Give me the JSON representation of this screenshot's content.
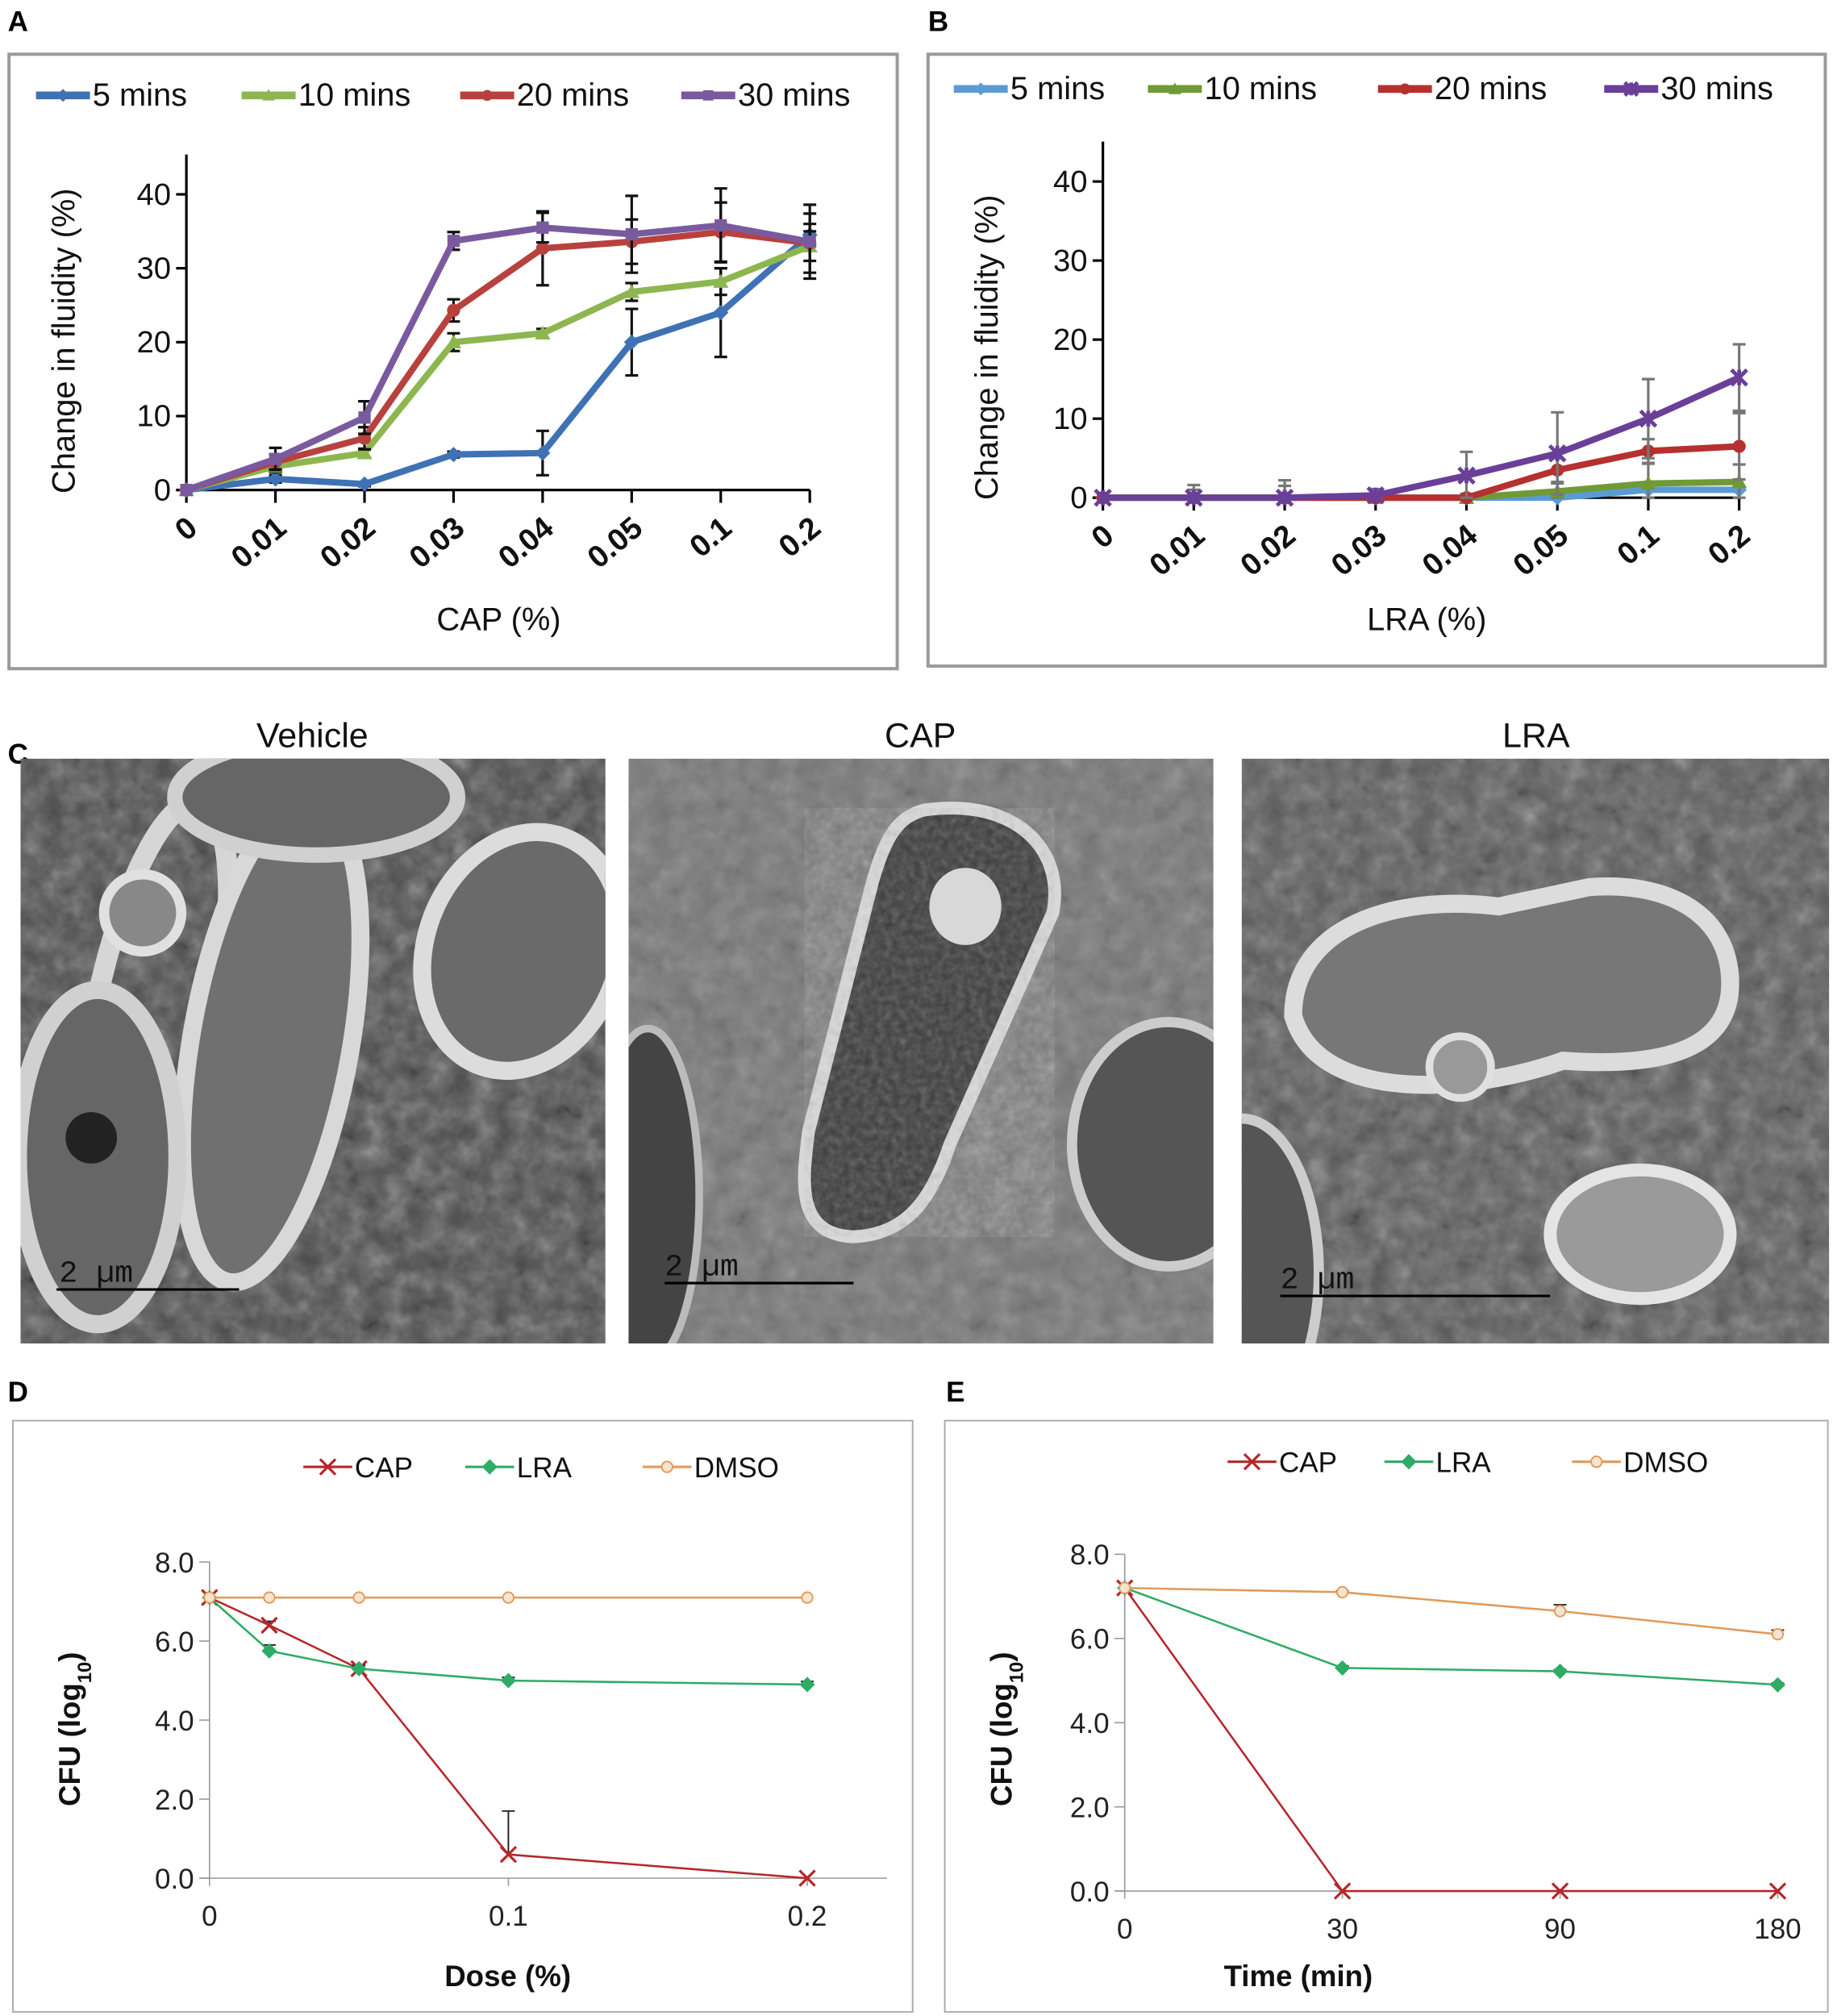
{
  "panel_labels": {
    "a": "A",
    "b": "B",
    "c": "C",
    "d": "D",
    "e": "E"
  },
  "micrographs": {
    "titles": [
      "Vehicle",
      "CAP",
      "LRA"
    ],
    "scale_bar": "2 µm"
  },
  "chart_data": [
    {
      "id": "A",
      "type": "line",
      "xlabel": "CAP (%)",
      "ylabel": "Change in fluidity (%)",
      "categories": [
        "0",
        "0.01",
        "0.02",
        "0.03",
        "0.04",
        "0.05",
        "0.1",
        "0.2"
      ],
      "yticks": [
        "0",
        "10",
        "20",
        "30",
        "40"
      ],
      "ylim": [
        0,
        45
      ],
      "legend_position": "top",
      "series": [
        {
          "name": "5 mins",
          "color": "#3f71b5",
          "marker": "diamond",
          "values": [
            0,
            1.5,
            0.8,
            4.8,
            5,
            20,
            24,
            34.5
          ],
          "errors": [
            0,
            0.5,
            0.3,
            0.4,
            3,
            4.5,
            6,
            1.5
          ]
        },
        {
          "name": "10 mins",
          "color": "#8db650",
          "marker": "triangle",
          "values": [
            0,
            3.2,
            5,
            20,
            21.2,
            26.8,
            28.2,
            33
          ],
          "errors": [
            0,
            0.8,
            0.6,
            1.2,
            0.6,
            1.2,
            1.8,
            2
          ]
        },
        {
          "name": "20 mins",
          "color": "#b8413e",
          "marker": "circle",
          "values": [
            0,
            3.8,
            7,
            24.3,
            32.7,
            33.6,
            34.9,
            33.4
          ],
          "errors": [
            0,
            1,
            1.5,
            1.5,
            5,
            3,
            4,
            4
          ]
        },
        {
          "name": "30 mins",
          "color": "#7a5a9e",
          "marker": "square",
          "values": [
            0,
            4.2,
            9.8,
            33.7,
            35.5,
            34.6,
            35.8,
            33.6
          ],
          "errors": [
            0,
            1.5,
            2.2,
            1.2,
            2,
            5.2,
            5,
            5
          ]
        }
      ]
    },
    {
      "id": "B",
      "type": "line",
      "xlabel": "LRA (%)",
      "ylabel": "Change in fluidity (%)",
      "categories": [
        "0",
        "0.01",
        "0.02",
        "0.03",
        "0.04",
        "0.05",
        "0.1",
        "0.2"
      ],
      "yticks": [
        "0",
        "10",
        "20",
        "30",
        "40"
      ],
      "ylim": [
        0,
        45
      ],
      "legend_position": "top",
      "series": [
        {
          "name": "5 mins",
          "color": "#5b9bd5",
          "marker": "diamond",
          "values": [
            0,
            0,
            0,
            0,
            0,
            0,
            1,
            1
          ],
          "errors": [
            0,
            0,
            0,
            0,
            0,
            0,
            0,
            0
          ]
        },
        {
          "name": "10 mins",
          "color": "#6f9a35",
          "marker": "triangle",
          "values": [
            0,
            0,
            0,
            0,
            0,
            0.8,
            1.8,
            2
          ],
          "errors": [
            0,
            0,
            0,
            0,
            0,
            1,
            2.5,
            2.2
          ]
        },
        {
          "name": "20 mins",
          "color": "#b5302e",
          "marker": "circle",
          "values": [
            0,
            0,
            0,
            0,
            0,
            3.5,
            5.9,
            6.5
          ],
          "errors": [
            0,
            1,
            1.5,
            0.5,
            0.5,
            1.5,
            1.5,
            4.2
          ]
        },
        {
          "name": "30 mins",
          "color": "#6a3f98",
          "marker": "star",
          "values": [
            0,
            0,
            0,
            0.3,
            2.8,
            5.6,
            10,
            15.2
          ],
          "errors": [
            0,
            1.6,
            2.2,
            0.8,
            3,
            5.2,
            5,
            4.2
          ]
        }
      ]
    },
    {
      "id": "D",
      "type": "line",
      "xlabel": "Dose (%)",
      "ylabel": "CFU (log",
      "ylabel_sub": "10",
      "ylabel_end": ")",
      "x": [
        0,
        0.02,
        0.05,
        0.1,
        0.2
      ],
      "xticks": [
        "0",
        "0.1",
        "0.2"
      ],
      "xtick_values": [
        0,
        0.1,
        0.2
      ],
      "xlim": [
        0,
        0.2
      ],
      "yticks": [
        "0.0",
        "2.0",
        "4.0",
        "6.0",
        "8.0"
      ],
      "ylim": [
        0,
        8
      ],
      "legend_position": "top",
      "series": [
        {
          "name": "CAP",
          "color": "#b5272b",
          "marker": "x",
          "values": [
            7.1,
            6.4,
            5.3,
            0.6,
            0
          ],
          "errors": [
            0,
            0.1,
            0.1,
            1.1,
            0
          ]
        },
        {
          "name": "LRA",
          "color": "#2eac66",
          "marker": "diamond",
          "values": [
            7.1,
            5.75,
            5.3,
            5.0,
            4.9
          ],
          "errors": [
            0,
            0.15,
            0.08,
            0.08,
            0.08
          ]
        },
        {
          "name": "DMSO",
          "color": "#e29a5a",
          "marker": "open-circle",
          "values": [
            7.1,
            7.1,
            7.1,
            7.1,
            7.1
          ],
          "errors": [
            0,
            0,
            0,
            0,
            0
          ]
        }
      ]
    },
    {
      "id": "E",
      "type": "line",
      "xlabel": "Time (min)",
      "ylabel": "CFU (log",
      "ylabel_sub": "10",
      "ylabel_end": ")",
      "categories": [
        "0",
        "30",
        "90",
        "180"
      ],
      "yticks": [
        "0.0",
        "2.0",
        "4.0",
        "6.0",
        "8.0"
      ],
      "ylim": [
        0,
        8
      ],
      "legend_position": "top",
      "series": [
        {
          "name": "CAP",
          "color": "#b5272b",
          "marker": "x",
          "values": [
            7.2,
            0,
            0,
            0
          ],
          "errors": [
            0,
            0,
            0,
            0
          ]
        },
        {
          "name": "LRA",
          "color": "#2eac66",
          "marker": "diamond",
          "values": [
            7.2,
            5.3,
            5.22,
            4.9
          ],
          "errors": [
            0,
            0.05,
            0.04,
            0.04
          ]
        },
        {
          "name": "DMSO",
          "color": "#e29a5a",
          "marker": "open-circle",
          "values": [
            7.2,
            7.1,
            6.65,
            6.1
          ],
          "errors": [
            0,
            0.03,
            0.15,
            0.1
          ]
        }
      ]
    }
  ]
}
